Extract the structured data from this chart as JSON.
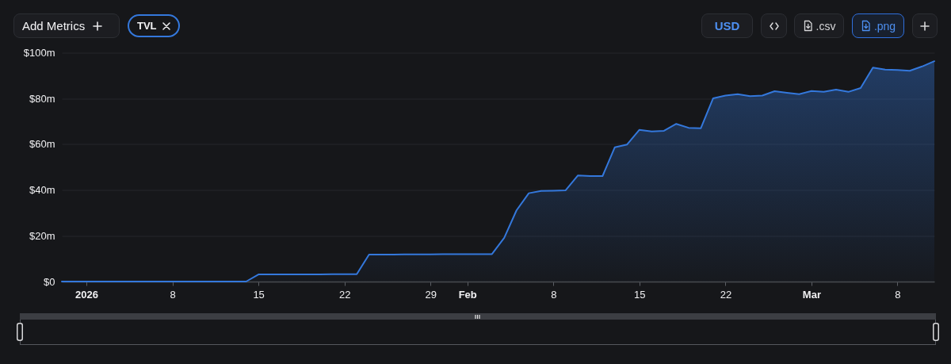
{
  "chart_data": {
    "type": "area",
    "x": [
      "2025-12-30",
      "2025-12-31",
      "2026-01-01",
      "2026-01-02",
      "2026-01-03",
      "2026-01-04",
      "2026-01-05",
      "2026-01-06",
      "2026-01-07",
      "2026-01-08",
      "2026-01-09",
      "2026-01-10",
      "2026-01-11",
      "2026-01-12",
      "2026-01-13",
      "2026-01-14",
      "2026-01-15",
      "2026-01-16",
      "2026-01-17",
      "2026-01-18",
      "2026-01-19",
      "2026-01-20",
      "2026-01-21",
      "2026-01-22",
      "2026-01-23",
      "2026-01-24",
      "2026-01-25",
      "2026-01-26",
      "2026-01-27",
      "2026-01-28",
      "2026-01-29",
      "2026-01-30",
      "2026-01-31",
      "2026-02-01",
      "2026-02-02",
      "2026-02-03",
      "2026-02-04",
      "2026-02-05",
      "2026-02-06",
      "2026-02-07",
      "2026-02-08",
      "2026-02-09",
      "2026-02-10",
      "2026-02-11",
      "2026-02-12",
      "2026-02-13",
      "2026-02-14",
      "2026-02-15",
      "2026-02-16",
      "2026-02-17",
      "2026-02-18",
      "2026-02-19",
      "2026-02-20",
      "2026-02-21",
      "2026-02-22",
      "2026-02-23",
      "2026-02-24",
      "2026-02-25",
      "2026-02-26",
      "2026-02-27",
      "2026-02-28",
      "2026-03-01",
      "2026-03-02",
      "2026-03-03",
      "2026-03-04",
      "2026-03-05",
      "2026-03-06",
      "2026-03-07",
      "2026-03-08",
      "2026-03-09",
      "2026-03-10",
      "2026-03-11"
    ],
    "series": [
      {
        "name": "TVL",
        "color": "#3478dc",
        "values": [
          0,
          0,
          0,
          0,
          0,
          0,
          0,
          0,
          0,
          0,
          0,
          0,
          0,
          0,
          0,
          0,
          3.1,
          3.1,
          3.1,
          3.1,
          3.1,
          3.1,
          3.2,
          3.2,
          3.2,
          11.8,
          11.8,
          11.8,
          11.9,
          11.9,
          11.9,
          12,
          12,
          12,
          12,
          12,
          19.1,
          31.1,
          38.6,
          39.6,
          39.7,
          39.9,
          46.4,
          46.1,
          46.1,
          58.7,
          59.9,
          66.3,
          65.6,
          65.9,
          68.9,
          67.2,
          67,
          80.1,
          81.3,
          81.9,
          81,
          81.3,
          83.2,
          82.5,
          81.9,
          83.3,
          82.9,
          83.9,
          82.9,
          84.6,
          93.5,
          92.6,
          92.5,
          92.1,
          94,
          96.3
        ]
      }
    ],
    "xlim": [
      "2025-12-30",
      "2026-03-11"
    ],
    "xticks": [
      {
        "value": "2026-01-01",
        "label": "2026"
      },
      {
        "value": "2026-01-08",
        "label": "8"
      },
      {
        "value": "2026-01-15",
        "label": "15"
      },
      {
        "value": "2026-01-22",
        "label": "22"
      },
      {
        "value": "2026-01-29",
        "label": "29"
      },
      {
        "value": "2026-02-01",
        "label": "Feb"
      },
      {
        "value": "2026-02-08",
        "label": "8"
      },
      {
        "value": "2026-02-15",
        "label": "15"
      },
      {
        "value": "2026-02-22",
        "label": "22"
      },
      {
        "value": "2026-03-01",
        "label": "Mar"
      },
      {
        "value": "2026-03-08",
        "label": "8"
      }
    ],
    "ylim": [
      0,
      100
    ],
    "yticks": [
      {
        "value": 0,
        "label": "$0"
      },
      {
        "value": 20,
        "label": "$20m"
      },
      {
        "value": 40,
        "label": "$40m"
      },
      {
        "value": 60,
        "label": "$60m"
      },
      {
        "value": 80,
        "label": "$80m"
      },
      {
        "value": 100,
        "label": "$100m"
      }
    ],
    "grid": "y",
    "legend": "top left",
    "annotations": [
      "Add Metrics",
      "USD",
      ".csv",
      ".png"
    ]
  }
}
